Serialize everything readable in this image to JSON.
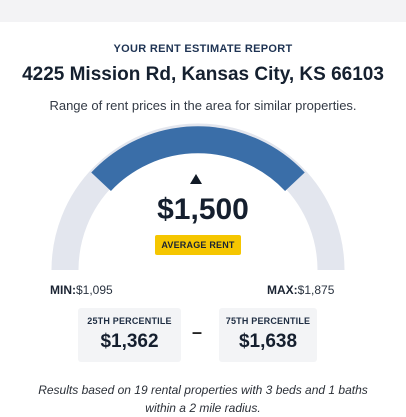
{
  "report": {
    "label": "YOUR RENT ESTIMATE REPORT",
    "address": "4225 Mission Rd, Kansas City, KS 66103",
    "subtitle": "Range of rent prices in the area for similar properties."
  },
  "gauge": {
    "average_value": "$1,500",
    "average_label": "AVERAGE RENT",
    "min_label": "MIN:",
    "min_value": "$1,095",
    "max_label": "MAX:",
    "max_value": "$1,875",
    "colors": {
      "highlight": "#3a6ea8",
      "track": "#e3e6ee",
      "badge": "#f5c600"
    }
  },
  "percentiles": {
    "p25_label": "25TH PERCENTILE",
    "p25_value": "$1,362",
    "separator": "–",
    "p75_label": "75TH PERCENTILE",
    "p75_value": "$1,638"
  },
  "footnote": {
    "line1": "Results based on 19 rental properties with 3 beds and 1 baths",
    "line2": "within a 2 mile radius."
  }
}
